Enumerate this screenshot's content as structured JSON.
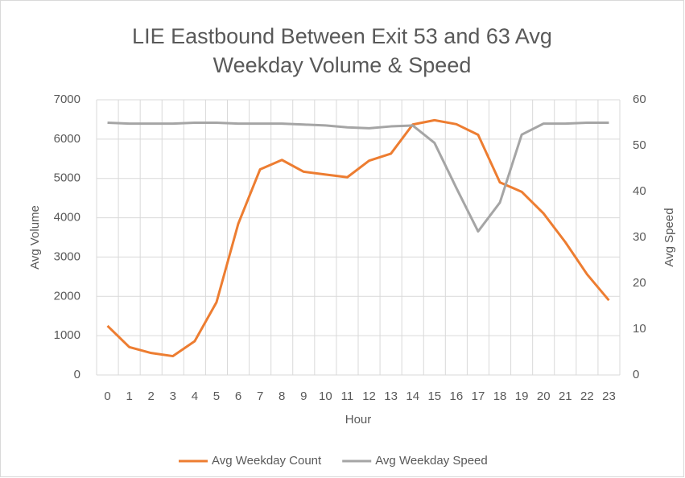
{
  "chart_data": {
    "type": "line",
    "title": [
      "LIE Eastbound Between Exit 53 and 63 Avg",
      "Weekday Volume & Speed"
    ],
    "x_label": "Hour",
    "y_label": "Avg Volume",
    "y2_label": "Avg Speed",
    "categories": [
      "0",
      "1",
      "2",
      "3",
      "4",
      "5",
      "6",
      "7",
      "8",
      "9",
      "10",
      "11",
      "12",
      "13",
      "14",
      "15",
      "16",
      "17",
      "18",
      "19",
      "20",
      "21",
      "22",
      "23"
    ],
    "series": [
      {
        "name": "Avg Weekday Count",
        "color": "#ed7d31",
        "axis": "y",
        "values": [
          1250,
          710,
          560,
          480,
          860,
          1850,
          3850,
          5230,
          5470,
          5170,
          5100,
          5030,
          5450,
          5630,
          6370,
          6480,
          6380,
          6110,
          4900,
          4660,
          4110,
          3380,
          2560,
          1900
        ]
      },
      {
        "name": "Avg Weekday Speed",
        "color": "#a5a5a5",
        "axis": "y2",
        "values": [
          55,
          54.8,
          54.8,
          54.8,
          55,
          55,
          54.8,
          54.8,
          54.8,
          54.6,
          54.4,
          54,
          53.8,
          54.2,
          54.4,
          50.6,
          40.8,
          31.3,
          37.6,
          52.4,
          54.8,
          54.8,
          55,
          55
        ]
      }
    ],
    "ylim": [
      0,
      7000
    ],
    "yticks": [
      0,
      1000,
      2000,
      3000,
      4000,
      5000,
      6000,
      7000
    ],
    "y2lim": [
      0,
      60
    ],
    "y2ticks": [
      0,
      10,
      20,
      30,
      40,
      50,
      60
    ],
    "grid": true,
    "legend": "bottom"
  }
}
